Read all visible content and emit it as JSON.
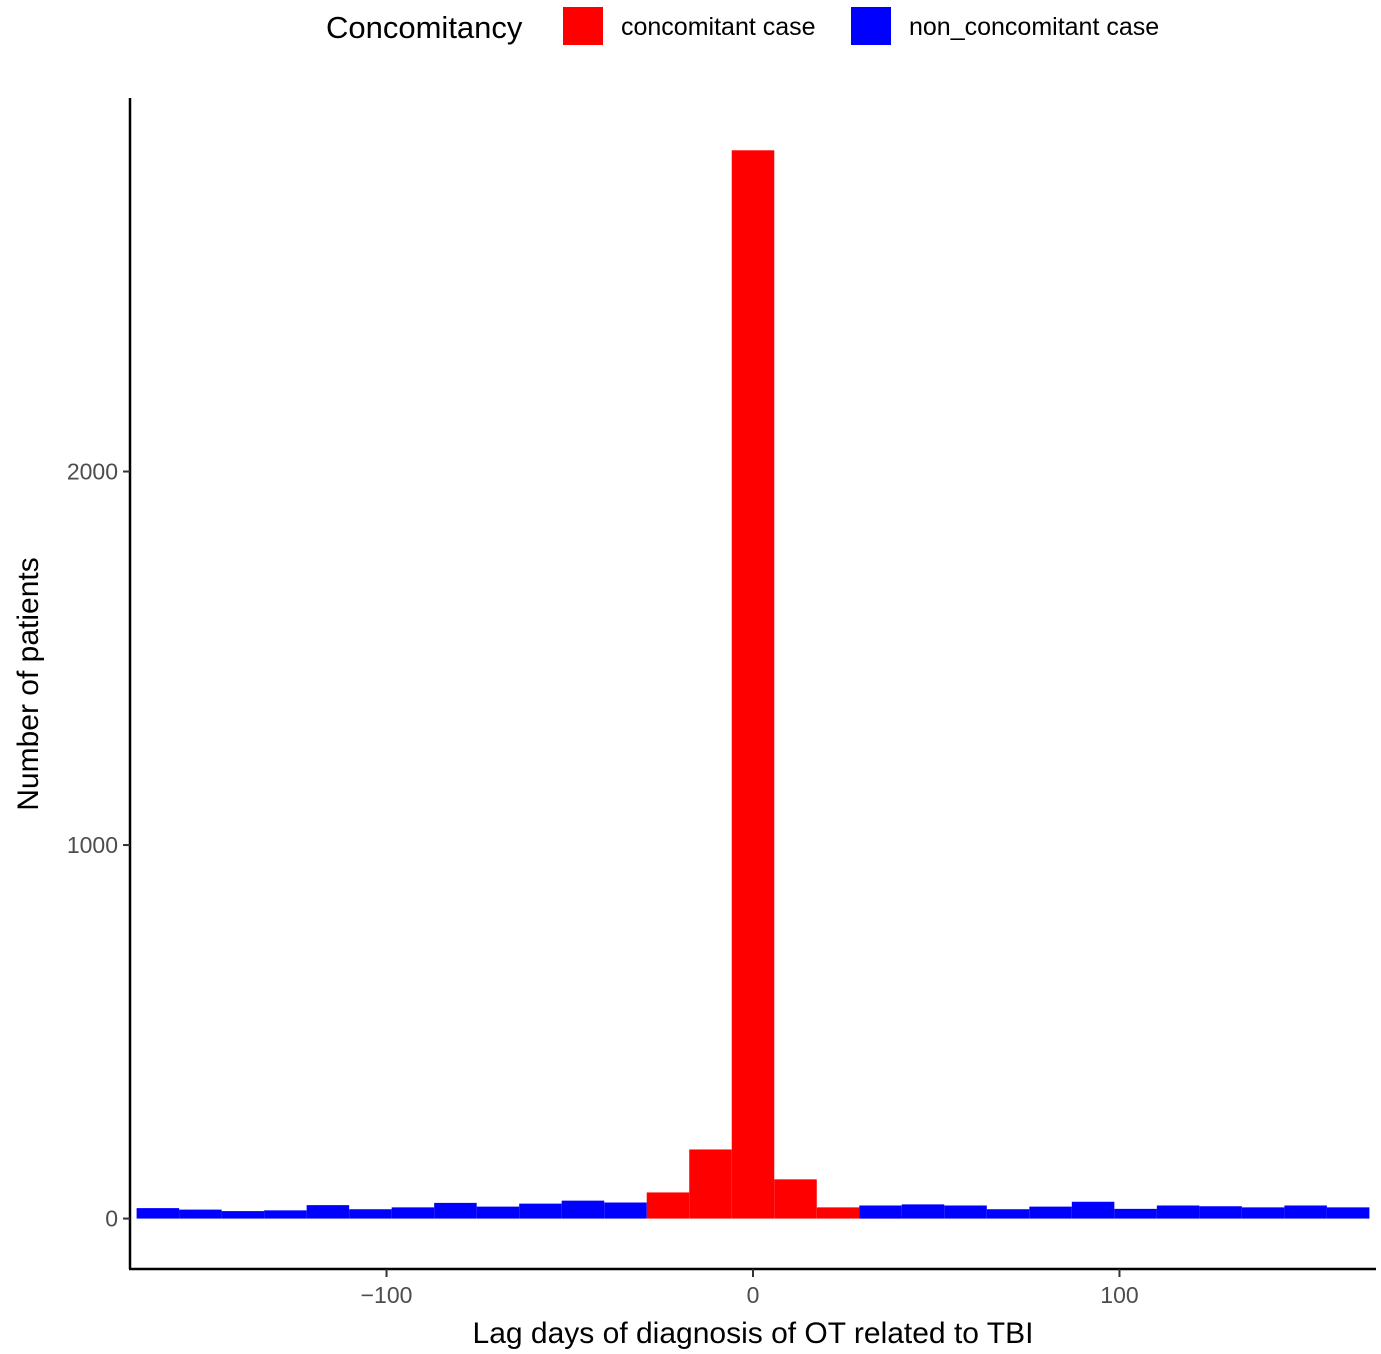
{
  "chart_data": {
    "type": "bar",
    "title": "",
    "xlabel": "Lag days of diagnosis of OT related to TBI",
    "ylabel": "Number of patients",
    "xlim": [
      -170,
      170
    ],
    "ylim": [
      -135,
      3000
    ],
    "x_ticks": [
      -100,
      0,
      100
    ],
    "x_tick_labels": [
      "−100",
      "0",
      "100"
    ],
    "y_ticks": [
      0,
      1000,
      2000
    ],
    "y_tick_labels": [
      "0",
      "1000",
      "2000"
    ],
    "grid": false,
    "legend_position": "top",
    "bin_width": 11.6,
    "legend": {
      "title": "Concomitancy",
      "entries": [
        {
          "label": "concomitant case",
          "color": "#FF0000"
        },
        {
          "label": "non_concomitant case",
          "color": "#0000FF"
        }
      ]
    },
    "series": [
      {
        "name": "concomitant case",
        "color": "#FF0000",
        "x": [
          -23.2,
          -11.6,
          0.0,
          11.6,
          23.2,
          34.8
        ],
        "values": [
          70,
          185,
          2860,
          105,
          30,
          10
        ]
      },
      {
        "name": "non_concomitant case",
        "color": "#0000FF",
        "x": [
          -162.4,
          -150.8,
          -139.2,
          -127.6,
          -116.0,
          -104.4,
          -92.8,
          -81.2,
          -69.6,
          -58.0,
          -46.4,
          -34.8,
          34.8,
          46.4,
          58.0,
          69.6,
          81.2,
          92.8,
          104.4,
          116.0,
          127.6,
          139.2,
          150.8,
          162.4
        ],
        "values": [
          28,
          24,
          20,
          22,
          36,
          25,
          30,
          42,
          32,
          40,
          48,
          43,
          35,
          38,
          35,
          25,
          32,
          45,
          26,
          35,
          33,
          30,
          35,
          30
        ]
      }
    ]
  }
}
